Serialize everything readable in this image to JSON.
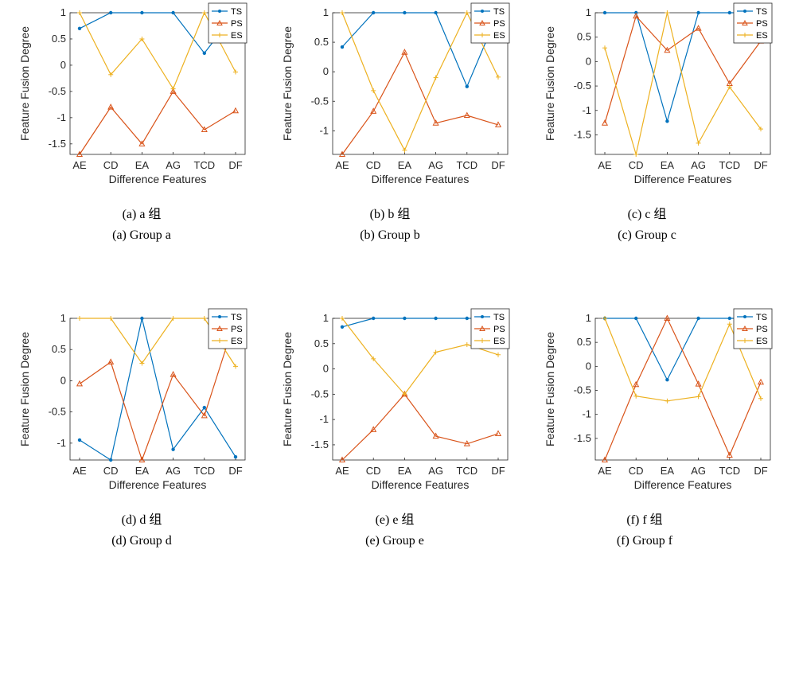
{
  "chart_data": [
    {
      "type": "line",
      "caption_cn": "(a) a 组",
      "caption_en": "(a) Group a",
      "xlabel": "Difference Features",
      "ylabel": "Feature Fusion Degree",
      "categories": [
        "AE",
        "CD",
        "EA",
        "AG",
        "TCD",
        "DF"
      ],
      "ylim": [
        -1.7,
        1
      ],
      "yticks": [
        1,
        0.5,
        0,
        -0.5,
        -1,
        -1.5
      ],
      "legend_position": "top-right",
      "series": [
        {
          "name": "TS",
          "color": "#0072BD",
          "marker": "dot",
          "values": [
            0.7,
            1,
            1,
            1,
            0.23,
            1
          ]
        },
        {
          "name": "PS",
          "color": "#D95319",
          "marker": "triangle",
          "values": [
            -1.7,
            -0.8,
            -1.5,
            -0.5,
            -1.23,
            -0.87
          ]
        },
        {
          "name": "ES",
          "color": "#EDB120",
          "marker": "plus",
          "values": [
            1,
            -0.18,
            0.5,
            -0.45,
            1,
            -0.13
          ]
        }
      ]
    },
    {
      "type": "line",
      "caption_cn": "(b) b 组",
      "caption_en": "(b) Group b",
      "xlabel": "Difference Features",
      "ylabel": "Feature Fusion Degree",
      "categories": [
        "AE",
        "CD",
        "EA",
        "AG",
        "TCD",
        "DF"
      ],
      "ylim": [
        -1.4,
        1
      ],
      "yticks": [
        1,
        0.5,
        0,
        -0.5,
        -1
      ],
      "legend_position": "top-right",
      "series": [
        {
          "name": "TS",
          "color": "#0072BD",
          "marker": "dot",
          "values": [
            0.42,
            1,
            1,
            1,
            -0.25,
            1
          ]
        },
        {
          "name": "PS",
          "color": "#D95319",
          "marker": "triangle",
          "values": [
            -1.4,
            -0.67,
            0.33,
            -0.87,
            -0.74,
            -0.9
          ]
        },
        {
          "name": "ES",
          "color": "#EDB120",
          "marker": "plus",
          "values": [
            1,
            -0.32,
            -1.33,
            -0.1,
            1,
            -0.09
          ]
        }
      ]
    },
    {
      "type": "line",
      "caption_cn": "(c) c 组",
      "caption_en": "(c) Group c",
      "xlabel": "Difference Features",
      "ylabel": "Feature Fusion Degree",
      "categories": [
        "AE",
        "CD",
        "EA",
        "AG",
        "TCD",
        "DF"
      ],
      "ylim": [
        -1.9,
        1
      ],
      "yticks": [
        1,
        0.5,
        0,
        -0.5,
        -1,
        -1.5
      ],
      "legend_position": "top-right",
      "series": [
        {
          "name": "TS",
          "color": "#0072BD",
          "marker": "dot",
          "values": [
            1,
            1,
            -1.22,
            1,
            1,
            1
          ]
        },
        {
          "name": "PS",
          "color": "#D95319",
          "marker": "triangle",
          "values": [
            -1.26,
            0.93,
            0.23,
            0.68,
            -0.45,
            0.42
          ]
        },
        {
          "name": "ES",
          "color": "#EDB120",
          "marker": "plus",
          "values": [
            0.28,
            -1.9,
            1,
            -1.67,
            -0.52,
            -1.38
          ]
        }
      ]
    },
    {
      "type": "line",
      "caption_cn": "(d) d 组",
      "caption_en": "(d) Group d",
      "xlabel": "Difference Features",
      "ylabel": "Feature Fusion Degree",
      "categories": [
        "AE",
        "CD",
        "EA",
        "AG",
        "TCD",
        "DF"
      ],
      "ylim": [
        -1.27,
        1
      ],
      "yticks": [
        1,
        0.5,
        0,
        -0.5,
        -1
      ],
      "legend_position": "top-right",
      "series": [
        {
          "name": "TS",
          "color": "#0072BD",
          "marker": "dot",
          "values": [
            -0.95,
            -1.27,
            1,
            -1.1,
            -0.43,
            -1.22
          ]
        },
        {
          "name": "PS",
          "color": "#D95319",
          "marker": "triangle",
          "values": [
            -0.05,
            0.3,
            -1.27,
            0.1,
            -0.56,
            1
          ]
        },
        {
          "name": "ES",
          "color": "#EDB120",
          "marker": "plus",
          "values": [
            1,
            1,
            0.28,
            1,
            1,
            0.23
          ]
        }
      ]
    },
    {
      "type": "line",
      "caption_cn": "(e) e 组",
      "caption_en": "(e) Group e",
      "xlabel": "Difference Features",
      "ylabel": "Feature Fusion Degree",
      "categories": [
        "AE",
        "CD",
        "EA",
        "AG",
        "TCD",
        "DF"
      ],
      "ylim": [
        -1.8,
        1
      ],
      "yticks": [
        1,
        0.5,
        0,
        -0.5,
        -1,
        -1.5
      ],
      "legend_position": "top-right",
      "series": [
        {
          "name": "TS",
          "color": "#0072BD",
          "marker": "dot",
          "values": [
            0.83,
            1,
            1,
            1,
            1,
            1
          ]
        },
        {
          "name": "PS",
          "color": "#D95319",
          "marker": "triangle",
          "values": [
            -1.8,
            -1.2,
            -0.5,
            -1.33,
            -1.48,
            -1.28
          ]
        },
        {
          "name": "ES",
          "color": "#EDB120",
          "marker": "plus",
          "values": [
            1,
            0.2,
            -0.5,
            0.33,
            0.48,
            0.28
          ]
        }
      ]
    },
    {
      "type": "line",
      "caption_cn": "(f) f 组",
      "caption_en": "(f) Group f",
      "xlabel": "Difference Features",
      "ylabel": "Feature Fusion Degree",
      "categories": [
        "AE",
        "CD",
        "EA",
        "AG",
        "TCD",
        "DF"
      ],
      "ylim": [
        -1.95,
        1
      ],
      "yticks": [
        1,
        0.5,
        0,
        -0.5,
        -1,
        -1.5
      ],
      "legend_position": "top-right",
      "series": [
        {
          "name": "TS",
          "color": "#0072BD",
          "marker": "dot",
          "values": [
            1,
            1,
            -0.28,
            1,
            1,
            1
          ]
        },
        {
          "name": "PS",
          "color": "#D95319",
          "marker": "triangle",
          "values": [
            -1.95,
            -0.38,
            1,
            -0.37,
            -1.85,
            -0.33
          ]
        },
        {
          "name": "ES",
          "color": "#EDB120",
          "marker": "plus",
          "values": [
            1,
            -0.62,
            -0.72,
            -0.63,
            0.88,
            -0.67
          ]
        }
      ]
    }
  ]
}
